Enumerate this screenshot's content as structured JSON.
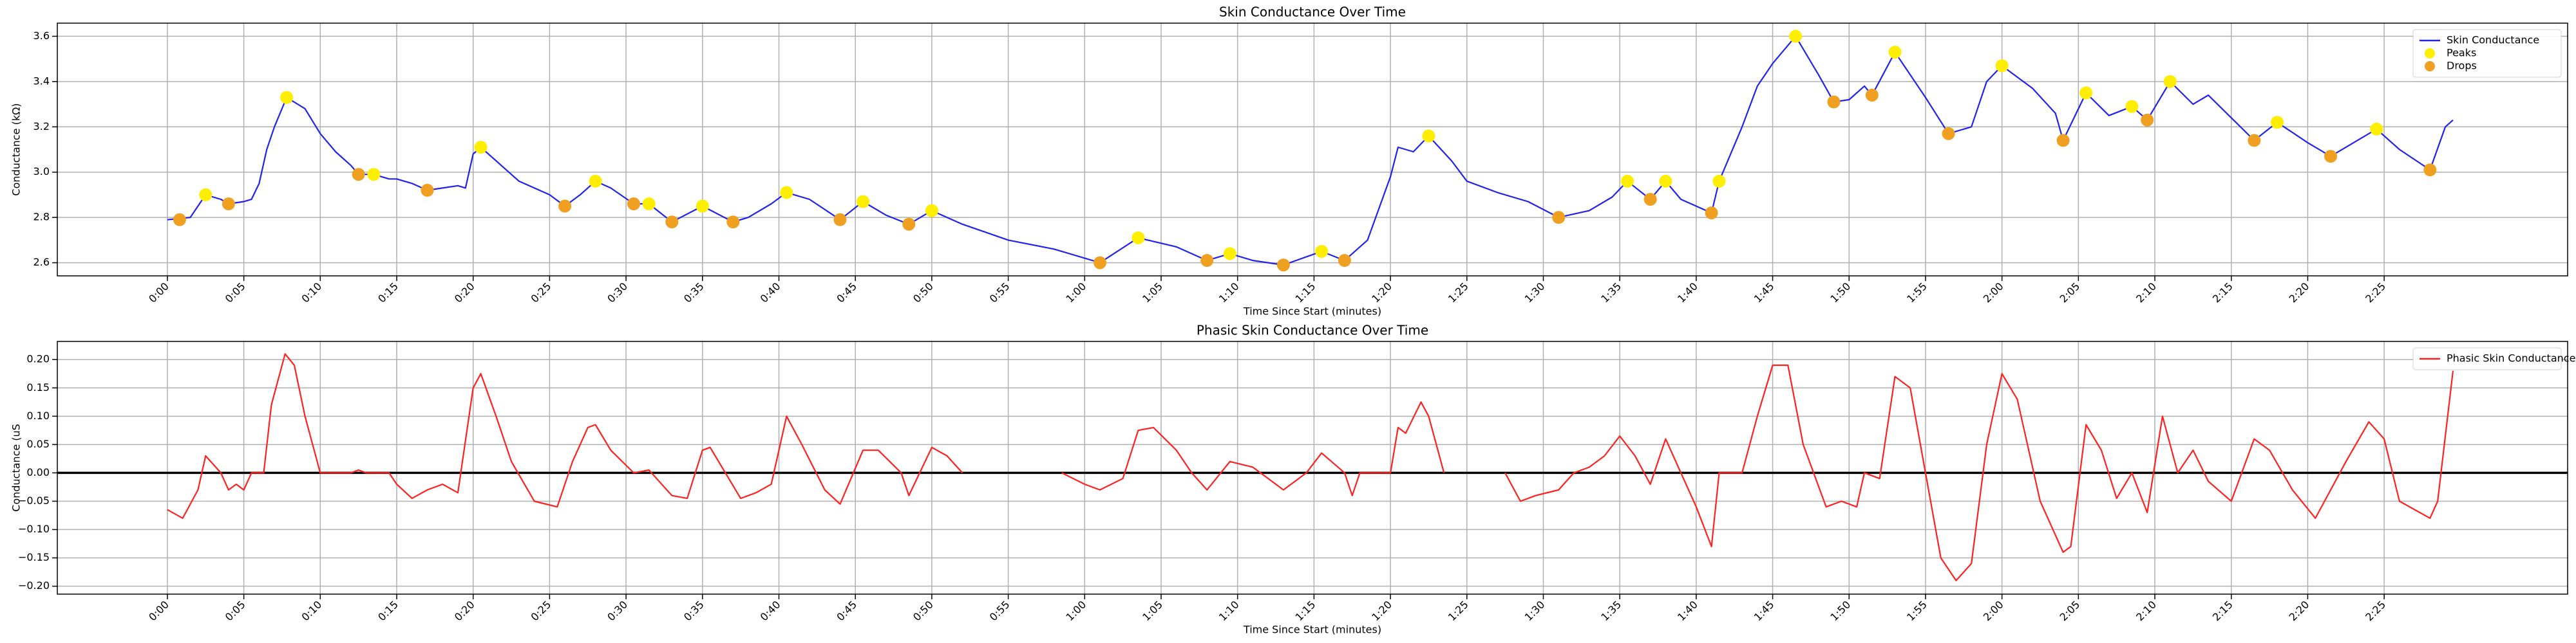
{
  "chart_data": [
    {
      "type": "line",
      "title": "Skin Conductance Over Time",
      "xlabel": "Time Since Start (minutes)",
      "ylabel": "Conductance (kΩ)",
      "xlim": [
        -7.2,
        157
      ],
      "ylim": [
        2.542,
        3.658
      ],
      "xticks": [
        {
          "value": 0,
          "label": "0:00"
        },
        {
          "value": 5,
          "label": "0:05"
        },
        {
          "value": 10,
          "label": "0:10"
        },
        {
          "value": 15,
          "label": "0:15"
        },
        {
          "value": 20,
          "label": "0:20"
        },
        {
          "value": 25,
          "label": "0:25"
        },
        {
          "value": 30,
          "label": "0:30"
        },
        {
          "value": 35,
          "label": "0:35"
        },
        {
          "value": 40,
          "label": "0:40"
        },
        {
          "value": 45,
          "label": "0:45"
        },
        {
          "value": 50,
          "label": "0:50"
        },
        {
          "value": 55,
          "label": "0:55"
        },
        {
          "value": 60,
          "label": "1:00"
        },
        {
          "value": 65,
          "label": "1:05"
        },
        {
          "value": 70,
          "label": "1:10"
        },
        {
          "value": 75,
          "label": "1:15"
        },
        {
          "value": 80,
          "label": "1:20"
        },
        {
          "value": 85,
          "label": "1:25"
        },
        {
          "value": 90,
          "label": "1:30"
        },
        {
          "value": 95,
          "label": "1:35"
        },
        {
          "value": 100,
          "label": "1:40"
        },
        {
          "value": 105,
          "label": "1:45"
        },
        {
          "value": 110,
          "label": "1:50"
        },
        {
          "value": 115,
          "label": "1:55"
        },
        {
          "value": 120,
          "label": "2:00"
        },
        {
          "value": 125,
          "label": "2:05"
        },
        {
          "value": 130,
          "label": "2:10"
        },
        {
          "value": 135,
          "label": "2:15"
        },
        {
          "value": 140,
          "label": "2:20"
        },
        {
          "value": 145,
          "label": "2:25"
        }
      ],
      "yticks": [
        {
          "value": 2.6,
          "label": "2.6"
        },
        {
          "value": 2.8,
          "label": "2.8"
        },
        {
          "value": 3.0,
          "label": "3.0"
        },
        {
          "value": 3.2,
          "label": "3.2"
        },
        {
          "value": 3.4,
          "label": "3.4"
        },
        {
          "value": 3.6,
          "label": "3.6"
        }
      ],
      "grid": true,
      "legend": "upper-right",
      "series": [
        {
          "name": "Skin Conductance",
          "type": "line",
          "color": "#2222ee",
          "x": [
            0,
            1.5,
            2.5,
            3.5,
            4,
            5,
            5.5,
            6,
            6.5,
            7,
            7.8,
            9,
            10,
            11,
            12,
            12.5,
            13.5,
            14.5,
            15,
            16,
            17,
            18,
            19,
            19.5,
            20,
            20.5,
            21.5,
            23,
            25,
            26,
            27,
            28,
            29,
            30.5,
            31.5,
            33,
            35,
            37,
            38,
            39.5,
            40.5,
            42,
            44,
            45.5,
            47,
            48.5,
            50,
            52,
            55,
            58,
            61,
            63.5,
            66,
            68,
            69.5,
            71,
            73,
            75.5,
            77,
            78.5,
            80,
            80.5,
            81.5,
            82.5,
            84,
            85,
            87,
            89,
            91,
            93,
            94.5,
            95.5,
            97,
            98,
            99,
            101,
            101.5,
            103,
            104,
            105,
            106.5,
            108,
            109,
            110,
            111,
            111.5,
            113,
            115,
            116.5,
            118,
            119,
            120,
            122,
            123.5,
            124,
            125.5,
            127,
            128.5,
            129.5,
            131,
            132.5,
            133.5,
            135,
            136.5,
            138,
            140,
            141.5,
            143,
            144.5,
            146,
            148,
            149,
            149.5
          ],
          "values": [
            2.79,
            2.8,
            2.9,
            2.88,
            2.86,
            2.87,
            2.88,
            2.95,
            3.1,
            3.2,
            3.33,
            3.28,
            3.17,
            3.09,
            3.03,
            2.99,
            2.99,
            2.97,
            2.97,
            2.95,
            2.92,
            2.93,
            2.94,
            2.93,
            3.08,
            3.11,
            3.05,
            2.96,
            2.9,
            2.85,
            2.9,
            2.96,
            2.93,
            2.86,
            2.86,
            2.78,
            2.85,
            2.78,
            2.8,
            2.86,
            2.91,
            2.88,
            2.79,
            2.87,
            2.81,
            2.77,
            2.83,
            2.77,
            2.7,
            2.66,
            2.6,
            2.71,
            2.67,
            2.61,
            2.64,
            2.61,
            2.59,
            2.65,
            2.61,
            2.7,
            2.98,
            3.11,
            3.09,
            3.16,
            3.05,
            2.96,
            2.91,
            2.87,
            2.8,
            2.83,
            2.89,
            2.96,
            2.88,
            2.96,
            2.88,
            2.82,
            2.96,
            3.2,
            3.38,
            3.48,
            3.6,
            3.43,
            3.31,
            3.32,
            3.38,
            3.34,
            3.53,
            3.33,
            3.17,
            3.2,
            3.4,
            3.47,
            3.37,
            3.26,
            3.14,
            3.35,
            3.25,
            3.29,
            3.23,
            3.4,
            3.3,
            3.34,
            3.24,
            3.14,
            3.22,
            3.13,
            3.07,
            3.13,
            3.19,
            3.1,
            3.01,
            3.2,
            3.23
          ]
        },
        {
          "name": "Peaks",
          "type": "scatter",
          "color": "#ffee00",
          "x": [
            2.5,
            7.8,
            13.5,
            20.5,
            28,
            31.5,
            35,
            40.5,
            45.5,
            50,
            63.5,
            69.5,
            75.5,
            82.5,
            95.5,
            98,
            101.5,
            106.5,
            113,
            120,
            125.5,
            128.5,
            131,
            138,
            144.5
          ],
          "values": [
            2.9,
            3.33,
            2.99,
            3.11,
            2.96,
            2.86,
            2.85,
            2.91,
            2.87,
            2.83,
            2.71,
            2.64,
            2.65,
            3.16,
            2.96,
            2.96,
            2.96,
            3.6,
            3.53,
            3.47,
            3.35,
            3.29,
            3.4,
            3.22,
            3.19
          ]
        },
        {
          "name": "Drops",
          "type": "scatter",
          "color": "#f0a020",
          "x": [
            0.8,
            4,
            12.5,
            17,
            26,
            30.5,
            33,
            37,
            44,
            48.5,
            61,
            68,
            73,
            77,
            91,
            97,
            101,
            109,
            111.5,
            116.5,
            124,
            129.5,
            136.5,
            141.5,
            148
          ],
          "values": [
            2.79,
            2.86,
            2.99,
            2.92,
            2.85,
            2.86,
            2.78,
            2.78,
            2.79,
            2.77,
            2.6,
            2.61,
            2.59,
            2.61,
            2.8,
            2.88,
            2.82,
            3.31,
            3.34,
            3.17,
            3.14,
            3.23,
            3.14,
            3.07,
            3.01
          ]
        }
      ]
    },
    {
      "type": "line",
      "title": "Phasic Skin Conductance Over Time",
      "xlabel": "Time Since Start (minutes)",
      "ylabel": "Conductance (uS",
      "xlim": [
        -7.2,
        157
      ],
      "ylim": [
        -0.214,
        0.232
      ],
      "xticks": [
        {
          "value": 0,
          "label": "0:00"
        },
        {
          "value": 5,
          "label": "0:05"
        },
        {
          "value": 10,
          "label": "0:10"
        },
        {
          "value": 15,
          "label": "0:15"
        },
        {
          "value": 20,
          "label": "0:20"
        },
        {
          "value": 25,
          "label": "0:25"
        },
        {
          "value": 30,
          "label": "0:30"
        },
        {
          "value": 35,
          "label": "0:35"
        },
        {
          "value": 40,
          "label": "0:40"
        },
        {
          "value": 45,
          "label": "0:45"
        },
        {
          "value": 50,
          "label": "0:50"
        },
        {
          "value": 55,
          "label": "0:55"
        },
        {
          "value": 60,
          "label": "1:00"
        },
        {
          "value": 65,
          "label": "1:05"
        },
        {
          "value": 70,
          "label": "1:10"
        },
        {
          "value": 75,
          "label": "1:15"
        },
        {
          "value": 80,
          "label": "1:20"
        },
        {
          "value": 85,
          "label": "1:25"
        },
        {
          "value": 90,
          "label": "1:30"
        },
        {
          "value": 95,
          "label": "1:35"
        },
        {
          "value": 100,
          "label": "1:40"
        },
        {
          "value": 105,
          "label": "1:45"
        },
        {
          "value": 110,
          "label": "1:50"
        },
        {
          "value": 115,
          "label": "1:55"
        },
        {
          "value": 120,
          "label": "2:00"
        },
        {
          "value": 125,
          "label": "2:05"
        },
        {
          "value": 130,
          "label": "2:10"
        },
        {
          "value": 135,
          "label": "2:15"
        },
        {
          "value": 140,
          "label": "2:20"
        },
        {
          "value": 145,
          "label": "2:25"
        }
      ],
      "yticks": [
        {
          "value": -0.2,
          "label": "−0.20"
        },
        {
          "value": -0.15,
          "label": "−0.15"
        },
        {
          "value": -0.1,
          "label": "−0.10"
        },
        {
          "value": -0.05,
          "label": "−0.05"
        },
        {
          "value": 0,
          "label": "0.00"
        },
        {
          "value": 0.05,
          "label": "0.05"
        },
        {
          "value": 0.1,
          "label": "0.10"
        },
        {
          "value": 0.15,
          "label": "0.15"
        },
        {
          "value": 0.2,
          "label": "0.20"
        }
      ],
      "grid": true,
      "legend": "upper-right",
      "hlines": [
        0
      ],
      "series": [
        {
          "name": "Phasic Skin Conductance",
          "type": "line",
          "color": "#ff2020",
          "x": [
            0,
            1,
            2,
            2.5,
            3.5,
            4,
            4.5,
            5,
            5.5,
            6.3,
            6.8,
            7.7,
            8.3,
            9,
            10,
            11,
            12,
            12.5,
            13,
            14.5,
            15,
            16,
            17,
            18,
            19,
            20,
            20.5,
            21.5,
            22.5,
            24,
            25.5,
            26.5,
            27.5,
            28,
            29,
            30.5,
            31.5,
            33,
            34,
            35,
            35.5,
            36.5,
            37.5,
            38.5,
            39.5,
            40.5,
            41.5,
            43,
            44,
            45.5,
            46.5,
            48,
            48.5,
            50,
            51,
            52,
            55,
            58.5,
            60,
            61,
            62.5,
            63.5,
            64.5,
            66,
            67,
            68,
            69.5,
            71,
            72,
            73,
            74.5,
            75.5,
            77,
            77.5,
            78,
            80,
            80.5,
            81,
            82,
            82.5,
            83.5,
            85,
            87.5,
            88.5,
            89.5,
            91,
            92,
            93,
            94,
            95,
            96,
            97,
            98,
            99,
            100,
            101,
            101.5,
            103,
            104,
            105,
            106,
            107,
            108.5,
            109.5,
            110.5,
            111,
            112,
            113,
            114,
            115,
            116,
            117,
            118,
            119,
            120,
            121,
            122.5,
            124,
            124.5,
            125.5,
            126.5,
            127.5,
            128.5,
            129.5,
            130.5,
            131.5,
            132.5,
            133.5,
            135,
            136.5,
            137.5,
            139,
            140.5,
            142.5,
            144,
            145,
            146,
            148,
            148.5,
            149.5
          ],
          "values": [
            -0.065,
            -0.08,
            -0.03,
            0.03,
            0.0,
            -0.03,
            -0.02,
            -0.03,
            0.0,
            0.0,
            0.12,
            0.21,
            0.19,
            0.1,
            0.0,
            0.0,
            0.0,
            0.005,
            0.0,
            0.0,
            -0.02,
            -0.045,
            -0.03,
            -0.02,
            -0.035,
            0.15,
            0.175,
            0.1,
            0.02,
            -0.05,
            -0.06,
            0.02,
            0.08,
            0.085,
            0.04,
            0.0,
            0.005,
            -0.04,
            -0.045,
            0.04,
            0.045,
            0.0,
            -0.045,
            -0.035,
            -0.02,
            0.1,
            0.05,
            -0.03,
            -0.055,
            0.04,
            0.04,
            0.0,
            -0.04,
            0.045,
            0.03,
            0.0,
            null,
            0.0,
            -0.02,
            -0.03,
            -0.01,
            0.075,
            0.08,
            0.04,
            0.0,
            -0.03,
            0.02,
            0.01,
            -0.01,
            -0.03,
            0.0,
            0.035,
            0.0,
            -0.04,
            0.0,
            0.0,
            0.08,
            0.07,
            0.125,
            0.1,
            0.0,
            null,
            0.0,
            -0.05,
            -0.04,
            -0.03,
            0.0,
            0.01,
            0.03,
            0.065,
            0.03,
            -0.02,
            0.06,
            0.0,
            -0.06,
            -0.13,
            0.0,
            0.0,
            0.1,
            0.19,
            0.19,
            0.05,
            -0.06,
            -0.05,
            -0.06,
            0.0,
            -0.01,
            0.17,
            0.15,
            0.0,
            -0.15,
            -0.19,
            -0.16,
            0.05,
            0.175,
            0.13,
            -0.05,
            -0.14,
            -0.13,
            0.085,
            0.04,
            -0.045,
            0.0,
            -0.07,
            0.1,
            0.0,
            0.04,
            -0.015,
            -0.05,
            0.06,
            0.04,
            -0.03,
            -0.08,
            0.02,
            0.09,
            0.06,
            -0.05,
            -0.08,
            -0.05,
            0.18
          ]
        }
      ]
    }
  ]
}
